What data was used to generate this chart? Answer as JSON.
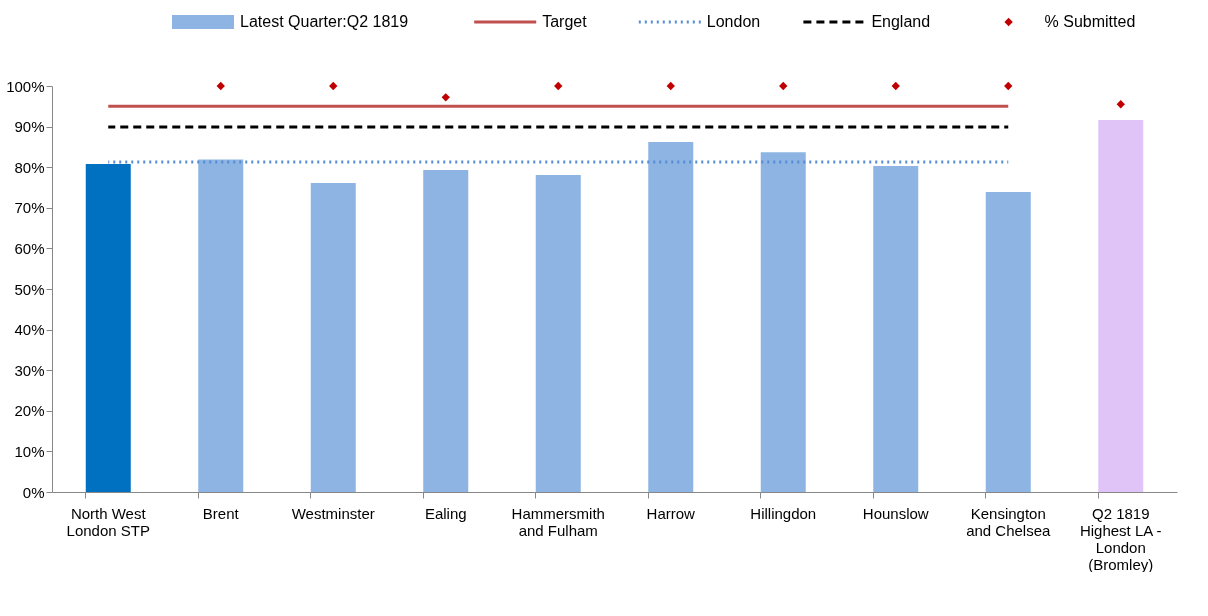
{
  "chart_data": {
    "type": "bar",
    "categories": [
      "North West\nLondon STP",
      "Brent",
      "Westminster",
      "Ealing",
      "Hammersmith\nand Fulham",
      "Harrow",
      "Hillingdon",
      "Hounslow",
      "Kensington\nand Chelsea",
      "Q2 1819\nHighest LA -\nLondon\n(Bromley)"
    ],
    "series": [
      {
        "name": "Latest Quarter:Q2 1819",
        "color": "#8db4e2",
        "colors": [
          "#0070c0",
          "#8db4e2",
          "#8db4e2",
          "#8db4e2",
          "#8db4e2",
          "#8db4e2",
          "#8db4e2",
          "#8db4e2",
          "#8db4e2",
          "#e0c4f8"
        ],
        "values": [
          80.8,
          81.9,
          76.1,
          79.3,
          78.1,
          86.2,
          83.7,
          80.3,
          73.9,
          91.6
        ]
      },
      {
        "name": "Target",
        "type": "line",
        "color": "#c0504d",
        "line_style": "solid",
        "values": [
          95,
          95,
          95,
          95,
          95,
          95,
          95,
          95,
          95,
          null
        ]
      },
      {
        "name": "London",
        "type": "line",
        "color": "#558ed5",
        "line_style": "dotted",
        "values": [
          81.3,
          81.3,
          81.3,
          81.3,
          81.3,
          81.3,
          81.3,
          81.3,
          81.3,
          null
        ]
      },
      {
        "name": "England",
        "type": "line",
        "color": "#000000",
        "line_style": "dashed",
        "values": [
          89.9,
          89.9,
          89.9,
          89.9,
          89.9,
          89.9,
          89.9,
          89.9,
          89.9,
          null
        ]
      },
      {
        "name": "% Submitted",
        "type": "scatter",
        "marker": "diamond",
        "color": "#c00000",
        "values": [
          null,
          100,
          100,
          97.2,
          100,
          100,
          100,
          100,
          100,
          95.5
        ]
      }
    ],
    "ylim": [
      0,
      100
    ],
    "yticks": [
      {
        "value": 0,
        "label": "0%"
      },
      {
        "value": 10,
        "label": "10%"
      },
      {
        "value": 20,
        "label": "20%"
      },
      {
        "value": 30,
        "label": "30%"
      },
      {
        "value": 40,
        "label": "40%"
      },
      {
        "value": 50,
        "label": "50%"
      },
      {
        "value": 60,
        "label": "60%"
      },
      {
        "value": 70,
        "label": "70%"
      },
      {
        "value": 80,
        "label": "80%"
      },
      {
        "value": 90,
        "label": "90%"
      },
      {
        "value": 100,
        "label": "100%"
      }
    ],
    "grid": false,
    "legend": "top"
  }
}
